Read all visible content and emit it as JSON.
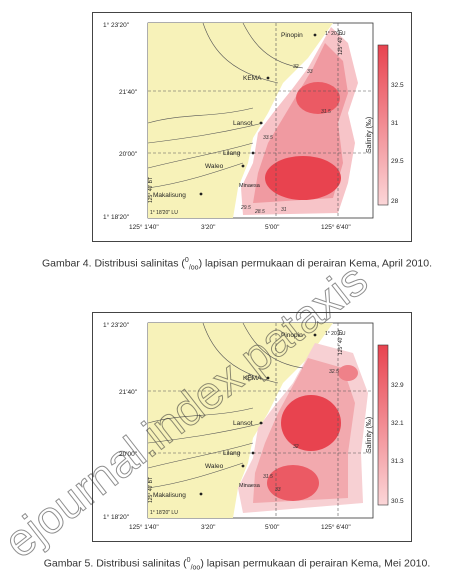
{
  "figures": [
    {
      "id": "fig4",
      "caption_prefix": "Gambar 4. Distribusi salinitas (",
      "caption_unit_sup": "0",
      "caption_unit_sub": "/oo",
      "caption_suffix": ") lapisan permukaan di perairan Kema, April 2010.",
      "lat_top": "1° 23'20\"",
      "lat_mid1": "21'40\"",
      "lat_mid2": "20'00\"",
      "lat_bottom": "1° 18'20\"",
      "lon_left": "125° 1'40\"",
      "lon_mid1": "3'20\"",
      "lon_mid2": "5'00\"",
      "lon_right": "125° 6'40\"",
      "corner_label_top": "1° 20' LU",
      "corner_label_bottom": "1° 18'20\" LU",
      "vertical_label_right": "125° 40' BT",
      "vertical_label_left": "125° 40' BT",
      "places": [
        "Pinopin",
        "KEMA",
        "Lansot",
        "Lilang",
        "Waleo",
        "Makalisung",
        "Minaesa"
      ],
      "colorbar_title": "Salinity (‰)",
      "colorbar_ticks": [
        "32.5",
        "31",
        "29.5",
        "28"
      ],
      "contour_labels": [
        "31.5",
        "32",
        "33",
        "29.5",
        "28.5",
        "31",
        "33.5"
      ]
    },
    {
      "id": "fig5",
      "caption_prefix": "Gambar 5. Distribusi salinitas (",
      "caption_unit_sup": "0",
      "caption_unit_sub": "/oo",
      "caption_suffix": ") lapisan permukaan di perairan Kema, Mei 2010.",
      "lat_top": "1° 23'20\"",
      "lat_mid1": "21'40\"",
      "lat_mid2": "20'00\"",
      "lat_bottom": "1° 18'20\"",
      "lon_left": "125° 1'40\"",
      "lon_mid1": "3'20\"",
      "lon_mid2": "5'00\"",
      "lon_right": "125° 6'40\"",
      "corner_label_top": "1° 20' LU",
      "corner_label_bottom": "1° 18'20\" LU",
      "vertical_label_right": "125° 40' BT",
      "vertical_label_left": "125° 40' BT",
      "places": [
        "Pinopin",
        "KEMA",
        "Lansot",
        "Lilang",
        "Waleo",
        "Makalisung",
        "Minaesa"
      ],
      "colorbar_title": "Salinity (‰)",
      "colorbar_ticks": [
        "32.9",
        "32.1",
        "31.3",
        "30.5"
      ],
      "contour_labels": [
        "32.5",
        "32",
        "31.5",
        "33"
      ]
    }
  ],
  "watermark_text": "ejournal.index.pataxis",
  "colors": {
    "land": "#f7f2b9",
    "sea": "#ffffff",
    "salinity_high": "#e8434f",
    "salinity_low": "#fbd6d8",
    "grid": "#555555"
  }
}
